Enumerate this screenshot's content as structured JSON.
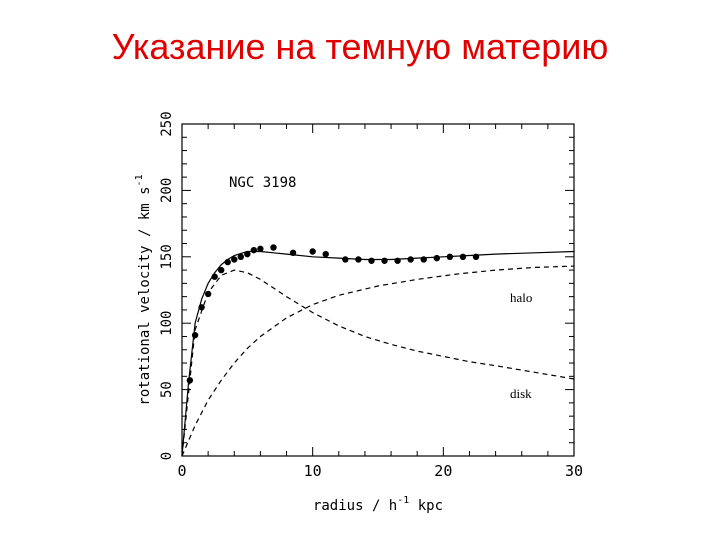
{
  "slide": {
    "title": "Указание на темную материю"
  },
  "chart_data": {
    "type": "line",
    "annotation": "NGC 3198",
    "xlabel": "radius / h",
    "xlabel_sup": "-1",
    "xlabel_unit": "kpc",
    "ylabel": "rotational velocity / km s",
    "ylabel_sup": "-1",
    "xlim": [
      0,
      30
    ],
    "ylim": [
      0,
      250
    ],
    "xticks": [
      0,
      10,
      20,
      30
    ],
    "yticks": [
      0,
      50,
      100,
      150,
      200,
      250
    ],
    "series": [
      {
        "name": "halo",
        "style": "dashed",
        "x": [
          0,
          1,
          2,
          3,
          4,
          5,
          6,
          8,
          10,
          12,
          15,
          18,
          21,
          24,
          27,
          30
        ],
        "y": [
          0,
          23,
          42,
          57,
          70,
          81,
          90,
          104,
          114,
          121,
          128,
          133,
          137,
          140,
          142,
          143
        ]
      },
      {
        "name": "disk",
        "style": "dashed",
        "x": [
          0,
          1,
          2,
          3,
          4,
          5,
          6,
          8,
          10,
          12,
          14,
          16,
          18,
          20,
          22,
          24,
          27,
          30
        ],
        "y": [
          0,
          95,
          123,
          136,
          140,
          138,
          133,
          120,
          108,
          98,
          90,
          84,
          79,
          75,
          71,
          68,
          63,
          58
        ]
      },
      {
        "name": "",
        "style": "solid",
        "x": [
          0,
          0.5,
          1,
          1.5,
          2,
          2.5,
          3,
          3.5,
          4,
          5,
          6,
          7,
          8,
          10,
          12,
          14,
          16,
          18,
          20,
          22,
          24,
          27,
          30
        ],
        "y": [
          0,
          55,
          100,
          118,
          130,
          138,
          144,
          148,
          151,
          154,
          154,
          153,
          152,
          150,
          149,
          148,
          148,
          149,
          150,
          151,
          152,
          153,
          154
        ]
      }
    ],
    "points": {
      "x": [
        0.6,
        1.0,
        1.5,
        2.0,
        2.5,
        3.0,
        3.5,
        4.0,
        4.5,
        5.0,
        5.5,
        6.0,
        7.0,
        8.5,
        10.0,
        11.0,
        12.5,
        13.5,
        14.5,
        15.5,
        16.5,
        17.5,
        18.5,
        19.5,
        20.5,
        21.5,
        22.5
      ],
      "y": [
        57,
        91,
        112,
        122,
        135,
        140,
        146,
        148,
        150,
        152,
        155,
        156,
        157,
        153,
        154,
        152,
        148,
        148,
        147,
        147,
        147,
        148,
        148,
        149,
        150,
        150,
        150
      ]
    }
  }
}
